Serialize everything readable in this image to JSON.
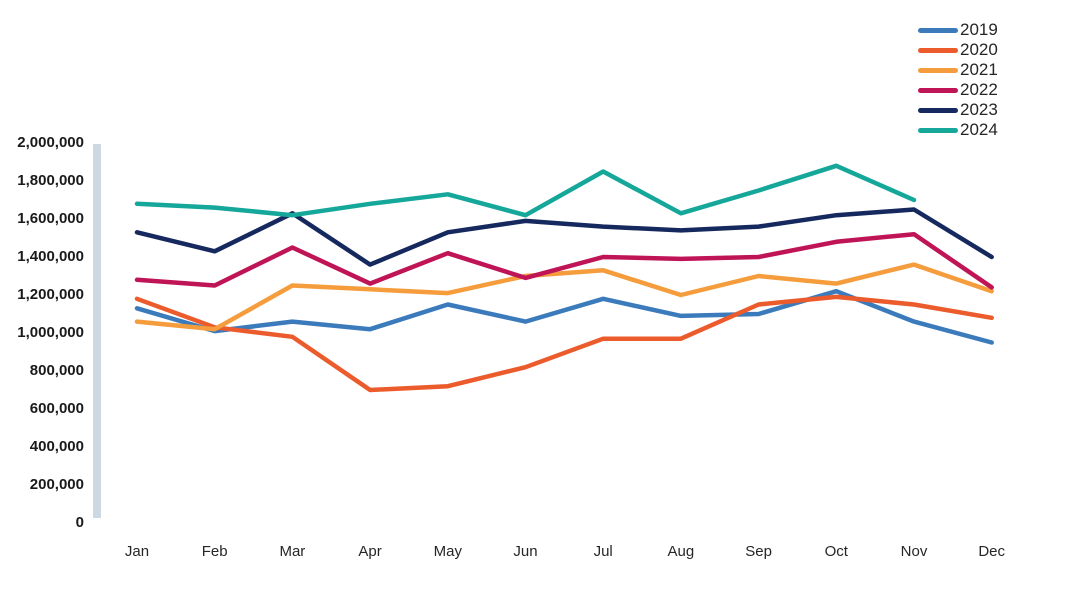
{
  "chart_data": {
    "type": "line",
    "title": "",
    "xlabel": "",
    "ylabel": "",
    "grid": "off",
    "legend_position": "top-right",
    "ylim": [
      0,
      2000000
    ],
    "ytick_step": 200000,
    "ytick_labels": [
      "0",
      "200,000",
      "400,000",
      "600,000",
      "800,000",
      "1,000,000",
      "1,200,000",
      "1,400,000",
      "1,600,000",
      "1,800,000",
      "2,000,000"
    ],
    "categories": [
      "Jan",
      "Feb",
      "Mar",
      "Apr",
      "May",
      "Jun",
      "Jul",
      "Aug",
      "Sep",
      "Oct",
      "Nov",
      "Dec"
    ],
    "series": [
      {
        "name": "2019",
        "color": "#3B7BBC",
        "values": [
          1130000,
          1010000,
          1060000,
          1020000,
          1150000,
          1060000,
          1180000,
          1090000,
          1100000,
          1220000,
          1060000,
          950000
        ]
      },
      {
        "name": "2020",
        "color": "#EB5B2C",
        "values": [
          1180000,
          1030000,
          980000,
          700000,
          720000,
          820000,
          970000,
          970000,
          1150000,
          1190000,
          1150000,
          1080000
        ]
      },
      {
        "name": "2021",
        "color": "#F59C3D",
        "values": [
          1060000,
          1020000,
          1250000,
          1230000,
          1210000,
          1300000,
          1330000,
          1200000,
          1300000,
          1260000,
          1360000,
          1220000
        ]
      },
      {
        "name": "2022",
        "color": "#BF1456",
        "values": [
          1280000,
          1250000,
          1450000,
          1260000,
          1420000,
          1290000,
          1400000,
          1390000,
          1400000,
          1480000,
          1520000,
          1240000
        ]
      },
      {
        "name": "2023",
        "color": "#16295E",
        "values": [
          1530000,
          1430000,
          1630000,
          1360000,
          1530000,
          1590000,
          1560000,
          1540000,
          1560000,
          1620000,
          1650000,
          1400000
        ]
      },
      {
        "name": "2024",
        "color": "#16A79B",
        "values": [
          1680000,
          1660000,
          1620000,
          1680000,
          1730000,
          1620000,
          1850000,
          1630000,
          1750000,
          1880000,
          1700000,
          null
        ]
      }
    ],
    "colors": {
      "axis_bar": "#CCD9E3",
      "ytick_text": "#1A1A1A",
      "xtick_text": "#262626",
      "background": "#FFFFFF"
    }
  }
}
